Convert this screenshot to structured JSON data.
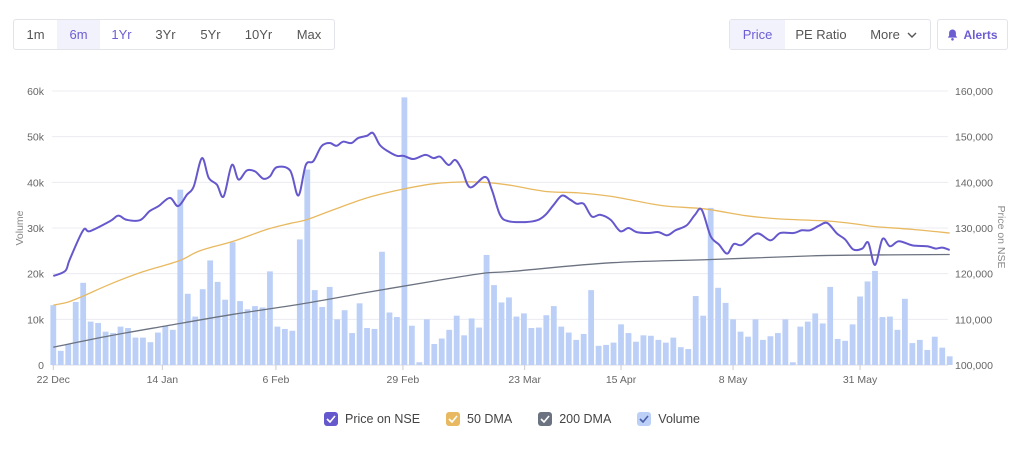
{
  "ranges": {
    "items": [
      "1m",
      "6m",
      "1Yr",
      "3Yr",
      "5Yr",
      "10Yr",
      "Max"
    ],
    "active": "6m",
    "highlighted": "1Yr"
  },
  "modes": {
    "items": [
      "Price",
      "PE Ratio",
      "More"
    ],
    "active": "Price",
    "more_icon": "chevron-down-icon"
  },
  "alerts": {
    "label": "Alerts",
    "icon": "bell-icon"
  },
  "colors": {
    "accent": "#6c5dd3",
    "price": "#6558cc",
    "dma50": "#e8b960",
    "dma200": "#6b7280",
    "volume": "#bcd0f7"
  },
  "legend": [
    {
      "label": "Price on NSE",
      "color": "#6558cc",
      "checked": true
    },
    {
      "label": "50 DMA",
      "color": "#e8b960",
      "checked": true
    },
    {
      "label": "200 DMA",
      "color": "#6b7280",
      "checked": true
    },
    {
      "label": "Volume",
      "color": "#bcd0f7",
      "checked": true
    }
  ],
  "chart_data": {
    "type": "bar+line",
    "xlabel": "",
    "ylabel_left": "Volume",
    "ylabel_right": "Price on NSE",
    "ylim_left": [
      0,
      60000
    ],
    "ylim_right": [
      100000,
      160000
    ],
    "yticks_left": [
      "0",
      "10k",
      "20k",
      "30k",
      "40k",
      "50k",
      "60k"
    ],
    "yticks_right": [
      "100,000",
      "110,000",
      "120,000",
      "130,000",
      "140,000",
      "150,000",
      "160,000"
    ],
    "grid": true,
    "legend_position": "bottom",
    "x_ticks": [
      {
        "label": "22 Dec",
        "day": 0
      },
      {
        "label": "14 Jan",
        "day": 14.6
      },
      {
        "label": "6 Feb",
        "day": 29.8
      },
      {
        "label": "29 Feb",
        "day": 46.8
      },
      {
        "label": "23 Mar",
        "day": 63.1
      },
      {
        "label": "15 Apr",
        "day": 76
      },
      {
        "label": "8 May",
        "day": 91
      },
      {
        "label": "31 May",
        "day": 108
      }
    ],
    "volume": [
      13100,
      3100,
      4600,
      13800,
      18000,
      9500,
      9200,
      7300,
      7000,
      8400,
      8100,
      6000,
      6000,
      5000,
      7100,
      8600,
      7700,
      38400,
      15600,
      10600,
      16600,
      22900,
      18200,
      14300,
      26900,
      14000,
      12200,
      12900,
      12600,
      20500,
      8400,
      7900,
      7500,
      27500,
      42800,
      16400,
      12700,
      17100,
      10000,
      12000,
      7000,
      13500,
      8100,
      7900,
      24800,
      11500,
      10500,
      58600,
      8600,
      600,
      10000,
      4600,
      5800,
      7700,
      10800,
      6500,
      10200,
      8200,
      24100,
      17500,
      13700,
      14800,
      10600,
      11300,
      8100,
      8200,
      10900,
      12900,
      8400,
      7100,
      5500,
      6800,
      16400,
      4200,
      4400,
      4900,
      8900,
      7000,
      5100,
      6500,
      6400,
      5500,
      4900,
      6000,
      3900,
      3500,
      15100,
      10800,
      34400,
      16900,
      13600,
      10000,
      7300,
      6200,
      10000,
      5500,
      6300,
      7000,
      10000,
      600,
      8400,
      9500,
      11300,
      9100,
      17100,
      5700,
      5300,
      8900,
      15000,
      18300,
      20600,
      10500,
      10600,
      7700,
      14500,
      4800,
      5500,
      3300,
      6200,
      3800,
      1900
    ],
    "price": [
      [
        0,
        119500
      ],
      [
        1.6,
        120600
      ],
      [
        2.2,
        123100
      ],
      [
        4,
        129500
      ],
      [
        4.9,
        129300
      ],
      [
        7.6,
        131500
      ],
      [
        8.7,
        132700
      ],
      [
        9.8,
        131800
      ],
      [
        11.6,
        131700
      ],
      [
        12.9,
        133700
      ],
      [
        14.1,
        134800
      ],
      [
        15.6,
        136600
      ],
      [
        16.7,
        134800
      ],
      [
        17.9,
        137300
      ],
      [
        18.8,
        139100
      ],
      [
        19.9,
        145300
      ],
      [
        20.8,
        141000
      ],
      [
        21.9,
        139500
      ],
      [
        22.8,
        136900
      ],
      [
        23.9,
        143800
      ],
      [
        24.8,
        140600
      ],
      [
        25.9,
        142600
      ],
      [
        27,
        142400
      ],
      [
        28.1,
        140800
      ],
      [
        29,
        141300
      ],
      [
        29.9,
        143300
      ],
      [
        31.7,
        142600
      ],
      [
        32.8,
        137100
      ],
      [
        33.8,
        143800
      ],
      [
        34.8,
        144600
      ],
      [
        35.9,
        147900
      ],
      [
        37,
        148600
      ],
      [
        37.9,
        148000
      ],
      [
        38.8,
        148900
      ],
      [
        39.9,
        148600
      ],
      [
        40.8,
        149700
      ],
      [
        42,
        150200
      ],
      [
        42.8,
        150800
      ],
      [
        43.7,
        148200
      ],
      [
        44.8,
        146800
      ],
      [
        46,
        145800
      ],
      [
        46.9,
        145800
      ],
      [
        48.2,
        145100
      ],
      [
        49.8,
        146000
      ],
      [
        50.9,
        145300
      ],
      [
        51.8,
        145600
      ],
      [
        52.9,
        143800
      ],
      [
        53.8,
        144900
      ],
      [
        54.7,
        142800
      ],
      [
        55.8,
        138900
      ],
      [
        57.8,
        141200
      ],
      [
        58.7,
        138400
      ],
      [
        59.8,
        132900
      ],
      [
        60.9,
        131500
      ],
      [
        63.2,
        131300
      ],
      [
        64.8,
        131700
      ],
      [
        65.9,
        132900
      ],
      [
        67,
        135100
      ],
      [
        68.1,
        137100
      ],
      [
        69.2,
        136200
      ],
      [
        70.1,
        135300
      ],
      [
        71,
        135300
      ],
      [
        72.1,
        132500
      ],
      [
        73.2,
        132900
      ],
      [
        74.6,
        131800
      ],
      [
        75.9,
        129300
      ],
      [
        77,
        130000
      ],
      [
        78.1,
        129100
      ],
      [
        79.7,
        128900
      ],
      [
        81,
        129100
      ],
      [
        82.2,
        128400
      ],
      [
        83.3,
        129500
      ],
      [
        84.8,
        130600
      ],
      [
        85.9,
        132900
      ],
      [
        86.8,
        134000
      ],
      [
        88,
        128200
      ],
      [
        89.1,
        126400
      ],
      [
        90.2,
        124400
      ],
      [
        91.1,
        126500
      ],
      [
        92.2,
        126300
      ],
      [
        94.2,
        128800
      ],
      [
        96,
        127300
      ],
      [
        97.3,
        128900
      ],
      [
        99.1,
        128900
      ],
      [
        100.2,
        129500
      ],
      [
        101.3,
        129500
      ],
      [
        102.5,
        130500
      ],
      [
        103.6,
        131100
      ],
      [
        104.9,
        128800
      ],
      [
        106,
        127500
      ],
      [
        107.1,
        125300
      ],
      [
        108.3,
        125500
      ],
      [
        109.1,
        126800
      ],
      [
        110,
        121900
      ],
      [
        111,
        127600
      ],
      [
        112,
        126000
      ],
      [
        113.2,
        127100
      ],
      [
        115,
        126200
      ],
      [
        117,
        126000
      ],
      [
        118.1,
        125500
      ],
      [
        119,
        125700
      ],
      [
        120,
        125200
      ]
    ],
    "dma50": [
      [
        0,
        113100
      ],
      [
        2,
        113800
      ],
      [
        4,
        115100
      ],
      [
        7.6,
        117700
      ],
      [
        11.6,
        120200
      ],
      [
        16.8,
        122800
      ],
      [
        19.6,
        125000
      ],
      [
        24.1,
        127100
      ],
      [
        28.6,
        129700
      ],
      [
        31.7,
        131000
      ],
      [
        33.9,
        131800
      ],
      [
        37.5,
        134000
      ],
      [
        42,
        136600
      ],
      [
        46.5,
        138400
      ],
      [
        51,
        139700
      ],
      [
        55.3,
        140100
      ],
      [
        58.5,
        139900
      ],
      [
        61.4,
        139300
      ],
      [
        65.9,
        138000
      ],
      [
        70.3,
        137700
      ],
      [
        74.8,
        136900
      ],
      [
        81.5,
        134900
      ],
      [
        87.1,
        134200
      ],
      [
        92.7,
        132700
      ],
      [
        97.1,
        132000
      ],
      [
        103.8,
        131500
      ],
      [
        107.8,
        130800
      ],
      [
        110,
        130300
      ],
      [
        115,
        129700
      ],
      [
        120,
        128900
      ]
    ],
    "dma200": [
      [
        0,
        103900
      ],
      [
        7.6,
        106400
      ],
      [
        15.2,
        108600
      ],
      [
        24.1,
        111100
      ],
      [
        33,
        113300
      ],
      [
        42,
        115900
      ],
      [
        51,
        118400
      ],
      [
        57.6,
        120100
      ],
      [
        61.4,
        120500
      ],
      [
        74.8,
        122400
      ],
      [
        88.1,
        123100
      ],
      [
        101.5,
        123900
      ],
      [
        110.5,
        124100
      ],
      [
        120,
        124200
      ]
    ]
  }
}
